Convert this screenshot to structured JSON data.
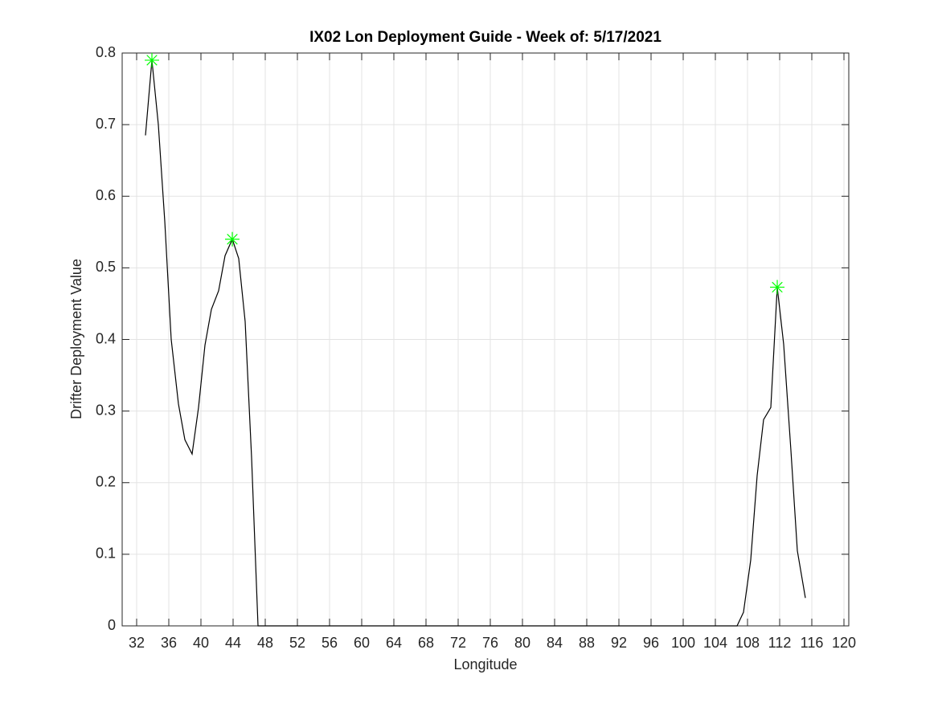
{
  "chart_data": {
    "type": "line",
    "title": "IX02 Lon Deployment Guide - Week of: 5/17/2021",
    "xlabel": "Longitude",
    "ylabel": "Drifter Deployment Value",
    "xlim": [
      30.2,
      120.6
    ],
    "ylim": [
      0,
      0.8
    ],
    "xticks": [
      32,
      36,
      40,
      44,
      48,
      52,
      56,
      60,
      64,
      68,
      72,
      76,
      80,
      84,
      88,
      92,
      96,
      100,
      104,
      108,
      112,
      116,
      120
    ],
    "yticks": [
      0,
      0.1,
      0.2,
      0.3,
      0.4,
      0.5,
      0.6,
      0.7,
      0.8
    ],
    "grid": true,
    "series": [
      {
        "color": "#000000",
        "marker": "none",
        "x": [
          33.1,
          33.9,
          34.7,
          35.5,
          36.3,
          37.2,
          38.0,
          38.9,
          39.7,
          40.5,
          41.3,
          42.2,
          43.0,
          43.9,
          44.7,
          45.5,
          46.3,
          47.1,
          106.7,
          107.5,
          108.4,
          109.2,
          110.0,
          110.9,
          111.7,
          112.5,
          113.4,
          114.2,
          115.2
        ],
        "values": [
          0.685,
          0.79,
          0.7,
          0.565,
          0.4,
          0.31,
          0.26,
          0.24,
          0.305,
          0.392,
          0.442,
          0.468,
          0.517,
          0.54,
          0.513,
          0.425,
          0.235,
          0,
          0,
          0.019,
          0.092,
          0.21,
          0.288,
          0.305,
          0.473,
          0.393,
          0.245,
          0.105,
          0.039
        ]
      },
      {
        "color": "#00ff00",
        "marker": "star",
        "x": [
          33.9,
          43.9,
          111.7
        ],
        "values": [
          0.79,
          0.54,
          0.473
        ]
      }
    ]
  }
}
